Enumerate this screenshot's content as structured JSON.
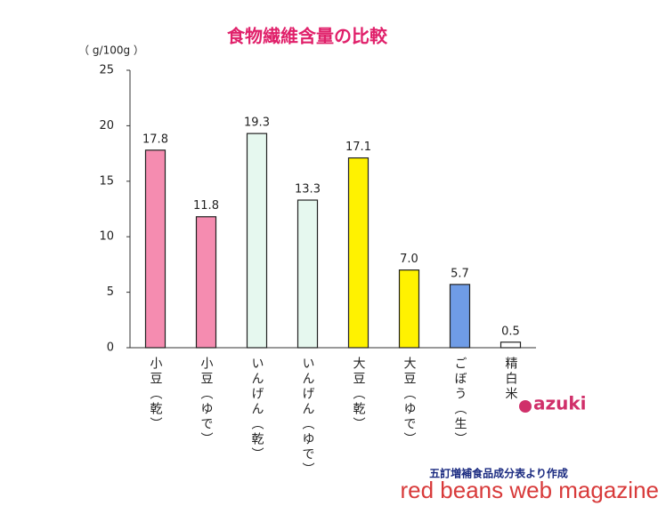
{
  "chart_data": {
    "type": "bar",
    "title": "食物繊維含量の比較",
    "y_label": "（ g/100g ）",
    "categories": [
      "小豆（乾）",
      "小豆（ゆで）",
      "いんげん（乾）",
      "いんげん（ゆで）",
      "大豆（乾）",
      "大豆（ゆで）",
      "ごぼう（生）",
      "精白米"
    ],
    "values": [
      17.8,
      11.8,
      19.3,
      13.3,
      17.1,
      7.0,
      5.7,
      0.5
    ],
    "value_labels": [
      "17.8",
      "11.8",
      "19.3",
      "13.3",
      "17.1",
      "7.0",
      "5.7",
      "0.5"
    ],
    "colors": [
      "#f58cb0",
      "#f58cb0",
      "#e6f8ef",
      "#e6f8ef",
      "#fff200",
      "#fff200",
      "#6f9ce6",
      "#ffffff"
    ],
    "ylim": [
      0,
      25
    ],
    "yticks": [
      0,
      5,
      10,
      15,
      20,
      25
    ],
    "grid": false,
    "source": "五訂増補食品成分表より作成",
    "logo": "azuki",
    "watermark": "red beans web magazine"
  }
}
